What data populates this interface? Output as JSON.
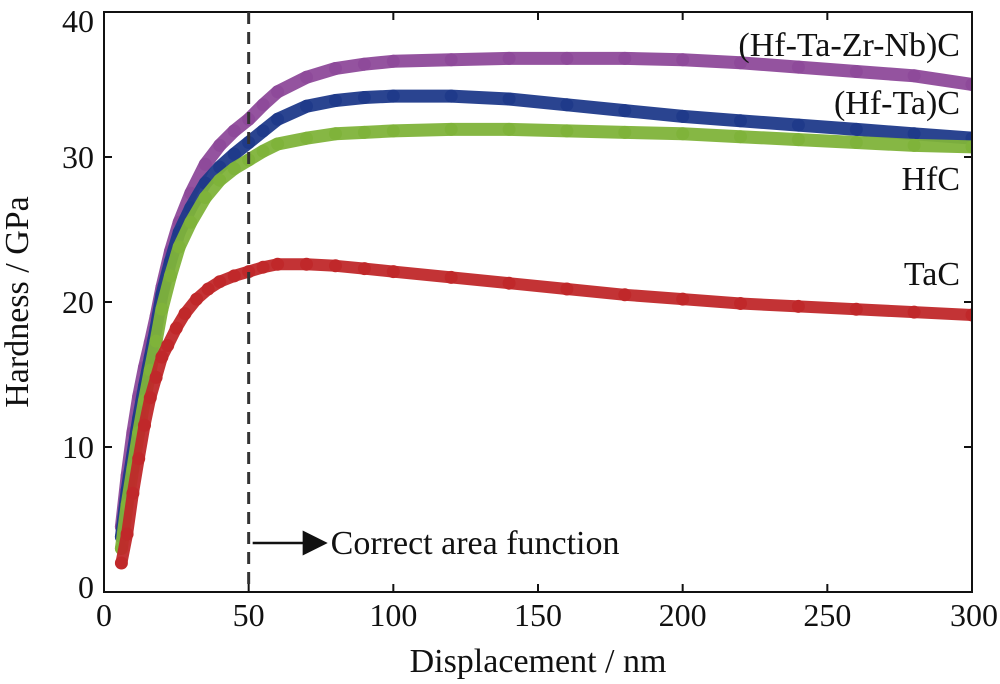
{
  "chart_data": {
    "type": "scatter",
    "xlabel": "Displacement / nm",
    "ylabel": "Hardness / GPa",
    "xlim": [
      0,
      300
    ],
    "ylim": [
      0,
      40
    ],
    "xticks": [
      0,
      50,
      100,
      150,
      200,
      250,
      300
    ],
    "yticks": [
      0,
      10,
      20,
      30,
      40
    ],
    "grid": false,
    "legend": "none",
    "annotation": {
      "text": "Correct area function",
      "reference_x": 50,
      "line_style": "dashed"
    },
    "series": [
      {
        "name": "(Hf-Ta-Zr-Nb)C",
        "color": "#8e4a9a",
        "x": [
          6,
          8,
          10,
          12,
          14,
          16,
          18,
          20,
          23,
          26,
          30,
          35,
          40,
          45,
          50,
          55,
          60,
          70,
          80,
          90,
          100,
          120,
          140,
          160,
          180,
          200,
          220,
          240,
          260,
          280,
          300
        ],
        "y": [
          4.5,
          8,
          11,
          13.5,
          15.5,
          17.2,
          19,
          21,
          23.5,
          25.5,
          27.5,
          29.5,
          30.8,
          31.8,
          32.6,
          33.6,
          34.5,
          35.5,
          36.1,
          36.4,
          36.6,
          36.7,
          36.8,
          36.8,
          36.8,
          36.7,
          36.5,
          36.2,
          35.9,
          35.6,
          35.0
        ]
      },
      {
        "name": "(Hf-Ta)C",
        "color": "#1f3a8a",
        "x": [
          6,
          8,
          10,
          12,
          14,
          16,
          18,
          20,
          23,
          26,
          30,
          35,
          40,
          45,
          50,
          55,
          60,
          70,
          80,
          90,
          100,
          120,
          140,
          160,
          180,
          200,
          220,
          240,
          260,
          280,
          300
        ],
        "y": [
          3.8,
          7,
          9.5,
          12,
          14.2,
          16.2,
          18.2,
          20.5,
          22.8,
          24.8,
          26.5,
          28.2,
          29.3,
          30.2,
          31.0,
          31.8,
          32.6,
          33.5,
          33.9,
          34.1,
          34.2,
          34.2,
          34.0,
          33.6,
          33.2,
          32.8,
          32.5,
          32.2,
          31.9,
          31.6,
          31.3
        ]
      },
      {
        "name": "HfC",
        "color": "#7fb33a",
        "x": [
          6,
          8,
          10,
          12,
          14,
          16,
          18,
          20,
          23,
          26,
          30,
          35,
          40,
          45,
          50,
          55,
          60,
          70,
          80,
          90,
          100,
          120,
          140,
          160,
          180,
          200,
          220,
          240,
          260,
          280,
          300
        ],
        "y": [
          3,
          6,
          8.5,
          11,
          13.2,
          15.3,
          17.3,
          19.5,
          21.8,
          23.8,
          25.5,
          27.2,
          28.4,
          29.2,
          29.8,
          30.4,
          30.9,
          31.3,
          31.6,
          31.7,
          31.8,
          31.9,
          31.9,
          31.8,
          31.7,
          31.6,
          31.4,
          31.2,
          31.0,
          30.8,
          30.7
        ]
      },
      {
        "name": "TaC",
        "color": "#c0282a",
        "x": [
          6,
          8,
          10,
          12,
          14,
          16,
          18,
          20,
          22,
          25,
          28,
          32,
          36,
          40,
          45,
          50,
          55,
          60,
          70,
          80,
          90,
          100,
          120,
          140,
          160,
          180,
          200,
          220,
          240,
          260,
          280,
          300
        ],
        "y": [
          2,
          4,
          6.8,
          9.2,
          11.5,
          13.4,
          14.8,
          16.2,
          17,
          18.2,
          19.2,
          20.2,
          20.9,
          21.4,
          21.8,
          22.1,
          22.4,
          22.6,
          22.6,
          22.5,
          22.3,
          22.1,
          21.7,
          21.3,
          20.9,
          20.5,
          20.2,
          19.9,
          19.7,
          19.5,
          19.3,
          19.1
        ]
      }
    ]
  }
}
